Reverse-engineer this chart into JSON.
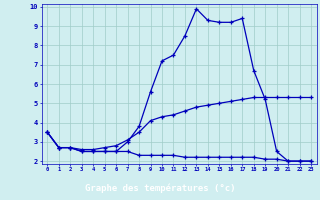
{
  "x_ticks": [
    0,
    1,
    2,
    3,
    4,
    5,
    6,
    7,
    8,
    9,
    10,
    11,
    12,
    13,
    14,
    15,
    16,
    17,
    18,
    19,
    20,
    21,
    22,
    23
  ],
  "line1_x": [
    0,
    1,
    2,
    3,
    4,
    5,
    6,
    7,
    8,
    9,
    10,
    11,
    12,
    13,
    14,
    15,
    16,
    17,
    18,
    19,
    20,
    21,
    22,
    23
  ],
  "line1_y": [
    3.5,
    2.7,
    2.7,
    2.5,
    2.5,
    2.5,
    2.5,
    3.0,
    3.8,
    5.6,
    7.2,
    7.5,
    8.5,
    9.9,
    9.3,
    9.2,
    9.2,
    9.4,
    6.7,
    5.2,
    2.5,
    2.0,
    2.0,
    2.0
  ],
  "line2_x": [
    0,
    1,
    2,
    3,
    4,
    5,
    6,
    7,
    8,
    9,
    10,
    11,
    12,
    13,
    14,
    15,
    16,
    17,
    18,
    19,
    20,
    21,
    22,
    23
  ],
  "line2_y": [
    3.5,
    2.7,
    2.7,
    2.6,
    2.6,
    2.7,
    2.8,
    3.1,
    3.5,
    4.1,
    4.3,
    4.4,
    4.6,
    4.8,
    4.9,
    5.0,
    5.1,
    5.2,
    5.3,
    5.3,
    5.3,
    5.3,
    5.3,
    5.3
  ],
  "line3_x": [
    0,
    1,
    2,
    3,
    4,
    5,
    6,
    7,
    8,
    9,
    10,
    11,
    12,
    13,
    14,
    15,
    16,
    17,
    18,
    19,
    20,
    21,
    22,
    23
  ],
  "line3_y": [
    3.5,
    2.7,
    2.7,
    2.5,
    2.5,
    2.5,
    2.5,
    2.5,
    2.3,
    2.3,
    2.3,
    2.3,
    2.2,
    2.2,
    2.2,
    2.2,
    2.2,
    2.2,
    2.2,
    2.1,
    2.1,
    2.0,
    2.0,
    2.0
  ],
  "xlim": [
    -0.5,
    23.5
  ],
  "ylim": [
    1.85,
    10.15
  ],
  "yticks": [
    2,
    3,
    4,
    5,
    6,
    7,
    8,
    9,
    10
  ],
  "xlabel": "Graphe des températures (°c)",
  "bg_color": "#d0eef0",
  "line_color": "#0000bb",
  "grid_color": "#a0ccc8",
  "label_bar_color": "#0000bb",
  "label_text_color": "#ffffff"
}
